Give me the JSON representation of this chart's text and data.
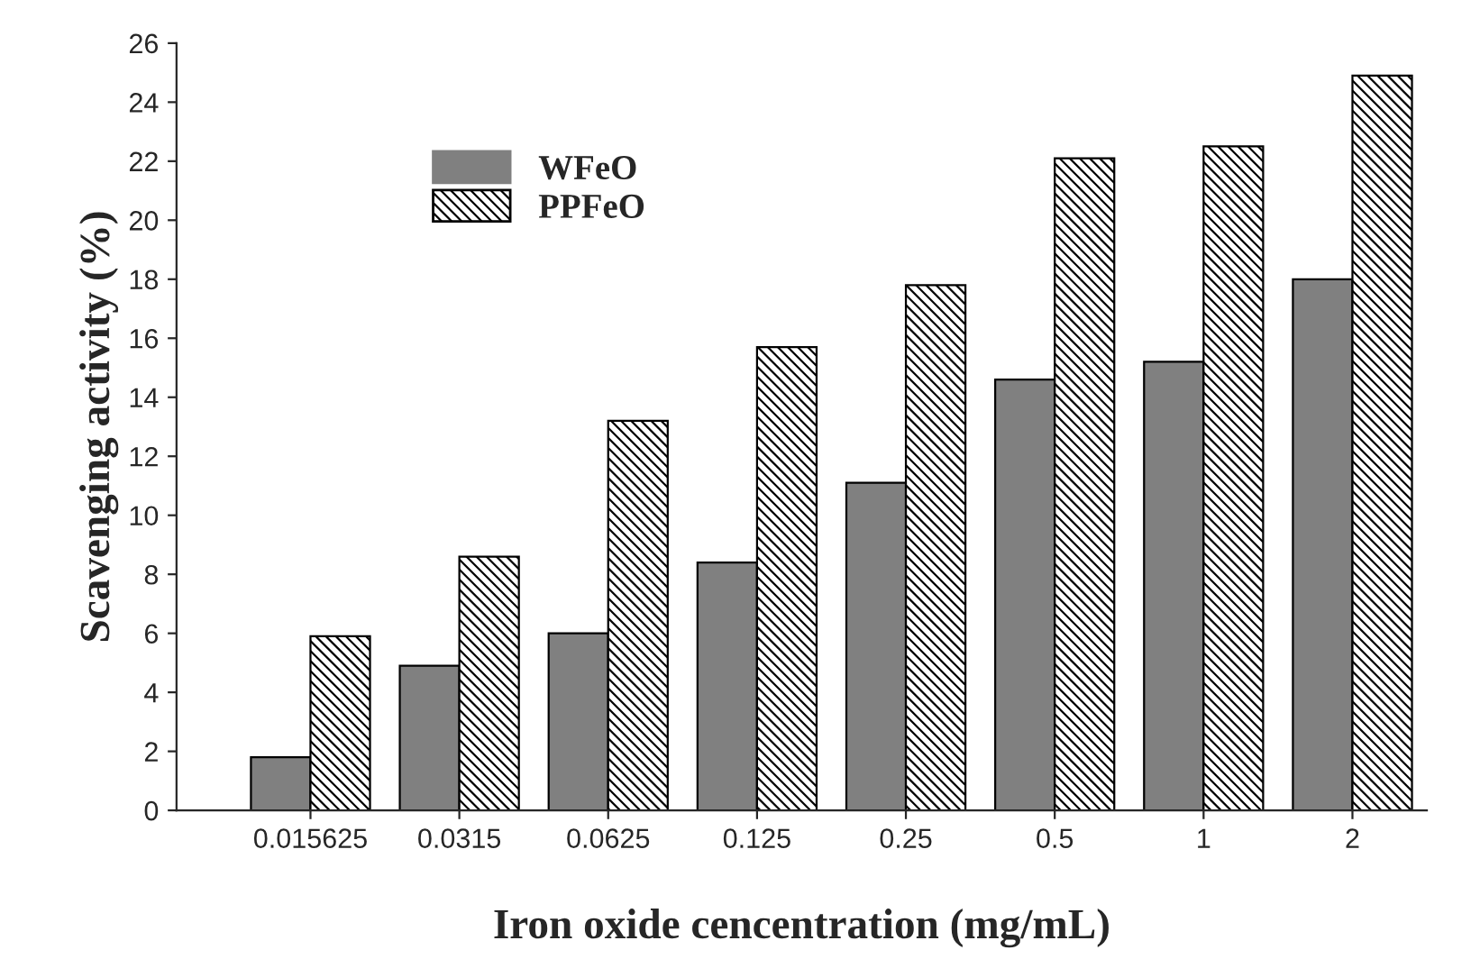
{
  "chart_data": {
    "type": "bar",
    "xlabel": "Iron oxide cencentration (mg/mL)",
    "ylabel": "Scavenging activity (%)",
    "categories": [
      "0.015625",
      "0.0315",
      "0.0625",
      "0.125",
      "0.25",
      "0.5",
      "1",
      "2"
    ],
    "series": [
      {
        "name": "WFeO",
        "color": "#808080",
        "values": [
          1.8,
          4.9,
          6.0,
          8.4,
          11.1,
          14.6,
          15.2,
          18.0
        ]
      },
      {
        "name": "PPFeO",
        "color": "#000000",
        "values": [
          5.9,
          8.6,
          13.2,
          15.7,
          17.8,
          22.1,
          22.5,
          24.9
        ]
      }
    ],
    "ylim": [
      0,
      26
    ],
    "yticks": [
      0,
      2,
      4,
      6,
      8,
      10,
      12,
      14,
      16,
      18,
      20,
      22,
      24,
      26
    ],
    "legend": "top left",
    "grid": false
  }
}
